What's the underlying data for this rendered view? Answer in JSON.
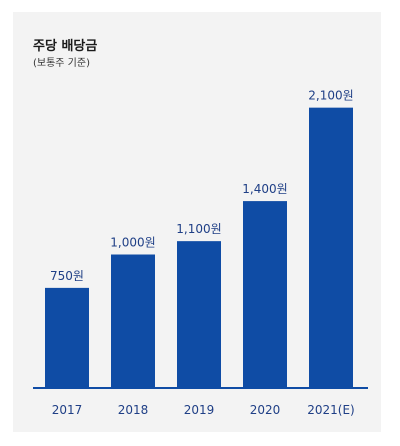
{
  "chart_data": {
    "type": "bar",
    "title": "주당 배당금",
    "subtitle": "(보통주 기준)",
    "categories": [
      "2017",
      "2018",
      "2019",
      "2020",
      "2021(E)"
    ],
    "values": [
      750,
      1000,
      1100,
      1400,
      2100
    ],
    "value_labels": [
      "750원",
      "1,000원",
      "1,100원",
      "1,400원",
      "2,100원"
    ],
    "xlabel": "",
    "ylabel": "",
    "bar_color": "#0f4ca5",
    "baseline_color": "#0f4ca5",
    "grid": false,
    "legend": false
  }
}
